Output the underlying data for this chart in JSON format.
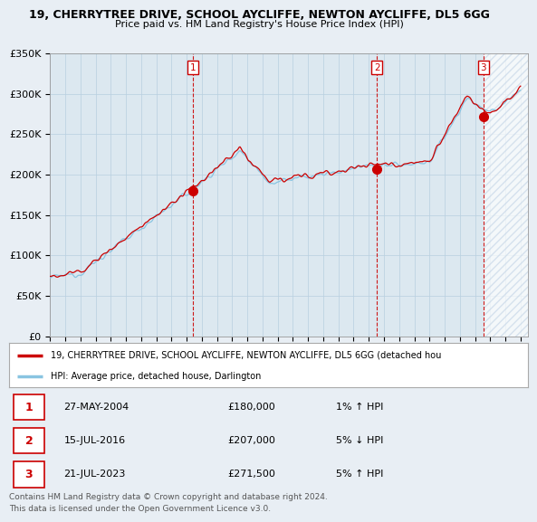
{
  "title1": "19, CHERRYTREE DRIVE, SCHOOL AYCLIFFE, NEWTON AYCLIFFE, DL5 6GG",
  "title2": "Price paid vs. HM Land Registry's House Price Index (HPI)",
  "ylabel_ticks": [
    "£0",
    "£50K",
    "£100K",
    "£150K",
    "£200K",
    "£250K",
    "£300K",
    "£350K"
  ],
  "ytick_vals": [
    0,
    50000,
    100000,
    150000,
    200000,
    250000,
    300000,
    350000
  ],
  "ylim": [
    0,
    350000
  ],
  "xlim_start": 1995.0,
  "xlim_end": 2026.5,
  "x_ticks": [
    1995,
    1996,
    1997,
    1998,
    1999,
    2000,
    2001,
    2002,
    2003,
    2004,
    2005,
    2006,
    2007,
    2008,
    2009,
    2010,
    2011,
    2012,
    2013,
    2014,
    2015,
    2016,
    2017,
    2018,
    2019,
    2020,
    2021,
    2022,
    2023,
    2024,
    2025,
    2026
  ],
  "hpi_color": "#89c4e1",
  "price_color": "#cc0000",
  "vline_color": "#cc0000",
  "background_color": "#e8eef4",
  "plot_bg_color": "#dce8f0",
  "grid_color": "#b8cfe0",
  "hatch_color": "#c8d8e8",
  "purchases": [
    {
      "num": 1,
      "year": 2004.41,
      "price": 180000,
      "date": "27-MAY-2004",
      "pct": "1%",
      "dir": "↑"
    },
    {
      "num": 2,
      "year": 2016.54,
      "price": 207000,
      "date": "15-JUL-2016",
      "pct": "5%",
      "dir": "↓"
    },
    {
      "num": 3,
      "year": 2023.54,
      "price": 271500,
      "date": "21-JUL-2023",
      "pct": "5%",
      "dir": "↑"
    }
  ],
  "legend_label1": "19, CHERRYTREE DRIVE, SCHOOL AYCLIFFE, NEWTON AYCLIFFE, DL5 6GG (detached hou",
  "legend_label2": "HPI: Average price, detached house, Darlington",
  "footer1": "Contains HM Land Registry data © Crown copyright and database right 2024.",
  "footer2": "This data is licensed under the Open Government Licence v3.0."
}
